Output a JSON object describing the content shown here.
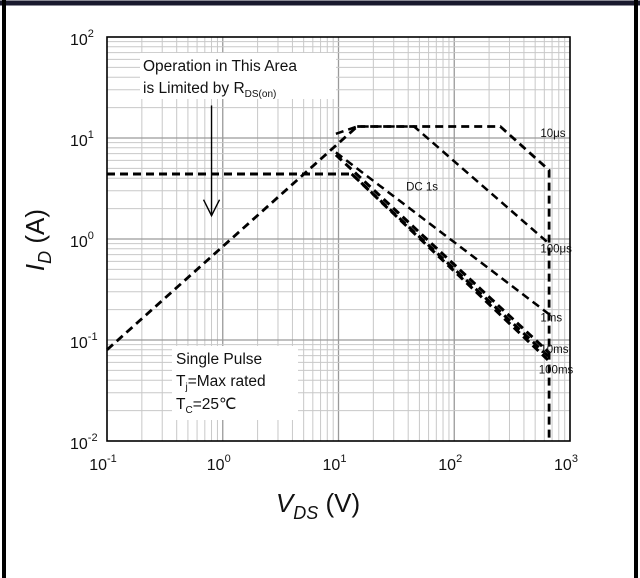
{
  "chart_data": {
    "type": "line",
    "x_scale": "log",
    "y_scale": "log",
    "xlim": [
      0.1,
      1000
    ],
    "ylim": [
      0.01,
      100
    ],
    "grid": true,
    "xlabel": {
      "main": "V",
      "sub": "DS",
      "unit": " (V)"
    },
    "ylabel": {
      "main": "I",
      "sub": "D",
      "unit": " (A)"
    },
    "x_ticks": [
      {
        "value": 0.1,
        "base": "10",
        "exp": "-1"
      },
      {
        "value": 1,
        "base": "10",
        "exp": "0"
      },
      {
        "value": 10,
        "base": "10",
        "exp": "1"
      },
      {
        "value": 100,
        "base": "10",
        "exp": "2"
      },
      {
        "value": 1000,
        "base": "10",
        "exp": "3"
      }
    ],
    "y_ticks": [
      {
        "value": 0.01,
        "base": "10",
        "exp": "-2"
      },
      {
        "value": 0.1,
        "base": "10",
        "exp": "-1"
      },
      {
        "value": 1,
        "base": "10",
        "exp": "0"
      },
      {
        "value": 10,
        "base": "10",
        "exp": "1"
      },
      {
        "value": 100,
        "base": "10",
        "exp": "2"
      }
    ],
    "series": [
      {
        "name": "10μs",
        "label_at": [
          650,
          11.5
        ],
        "points": [
          [
            14.5,
            13
          ],
          [
            250,
            13
          ],
          [
            660,
            4.8
          ],
          [
            660,
            0.01
          ]
        ],
        "width": 2.8
      },
      {
        "name": "100μs",
        "label_at": [
          650,
          0.82
        ],
        "points": [
          [
            9.5,
            11
          ],
          [
            14.5,
            13
          ],
          [
            45,
            13
          ],
          [
            660,
            0.9
          ]
        ],
        "width": 2.5
      },
      {
        "name": "1ms",
        "label_at": [
          650,
          0.17
        ],
        "points": [
          [
            9.5,
            7.2
          ],
          [
            660,
            0.18
          ]
        ],
        "width": 2.5
      },
      {
        "name": "10ms",
        "label_at": [
          650,
          0.083
        ],
        "points": [
          [
            9.5,
            6.8
          ],
          [
            660,
            0.075
          ]
        ],
        "width": 3
      },
      {
        "name": "100ms",
        "label_at": [
          630,
          0.052
        ],
        "points": [
          [
            13,
            4.4
          ],
          [
            660,
            0.068
          ]
        ],
        "width": 3
      },
      {
        "name": "DC 1s",
        "label_at": [
          45,
          3.4
        ],
        "points": [
          [
            0.1,
            4.4
          ],
          [
            13,
            4.4
          ],
          [
            660,
            0.062
          ]
        ],
        "width": 3
      },
      {
        "name": "",
        "points": [
          [
            0.1,
            0.08
          ],
          [
            14.5,
            13
          ]
        ],
        "width": 2.8
      }
    ],
    "annotations": {
      "limit_text_line1": "Operation in This Area",
      "limit_text_line2_main": "is Limited by R",
      "limit_text_line2_sub": "DS(on)",
      "arrow_from": [
        0.8,
        21
      ],
      "arrow_to": [
        0.8,
        1.7
      ],
      "conditions": [
        {
          "main": "Single Pulse",
          "sub": "",
          "rest": ""
        },
        {
          "main": "T",
          "sub": "j",
          "rest": "=Max rated"
        },
        {
          "main": "T",
          "sub": "C",
          "rest": "=25℃"
        }
      ]
    }
  }
}
